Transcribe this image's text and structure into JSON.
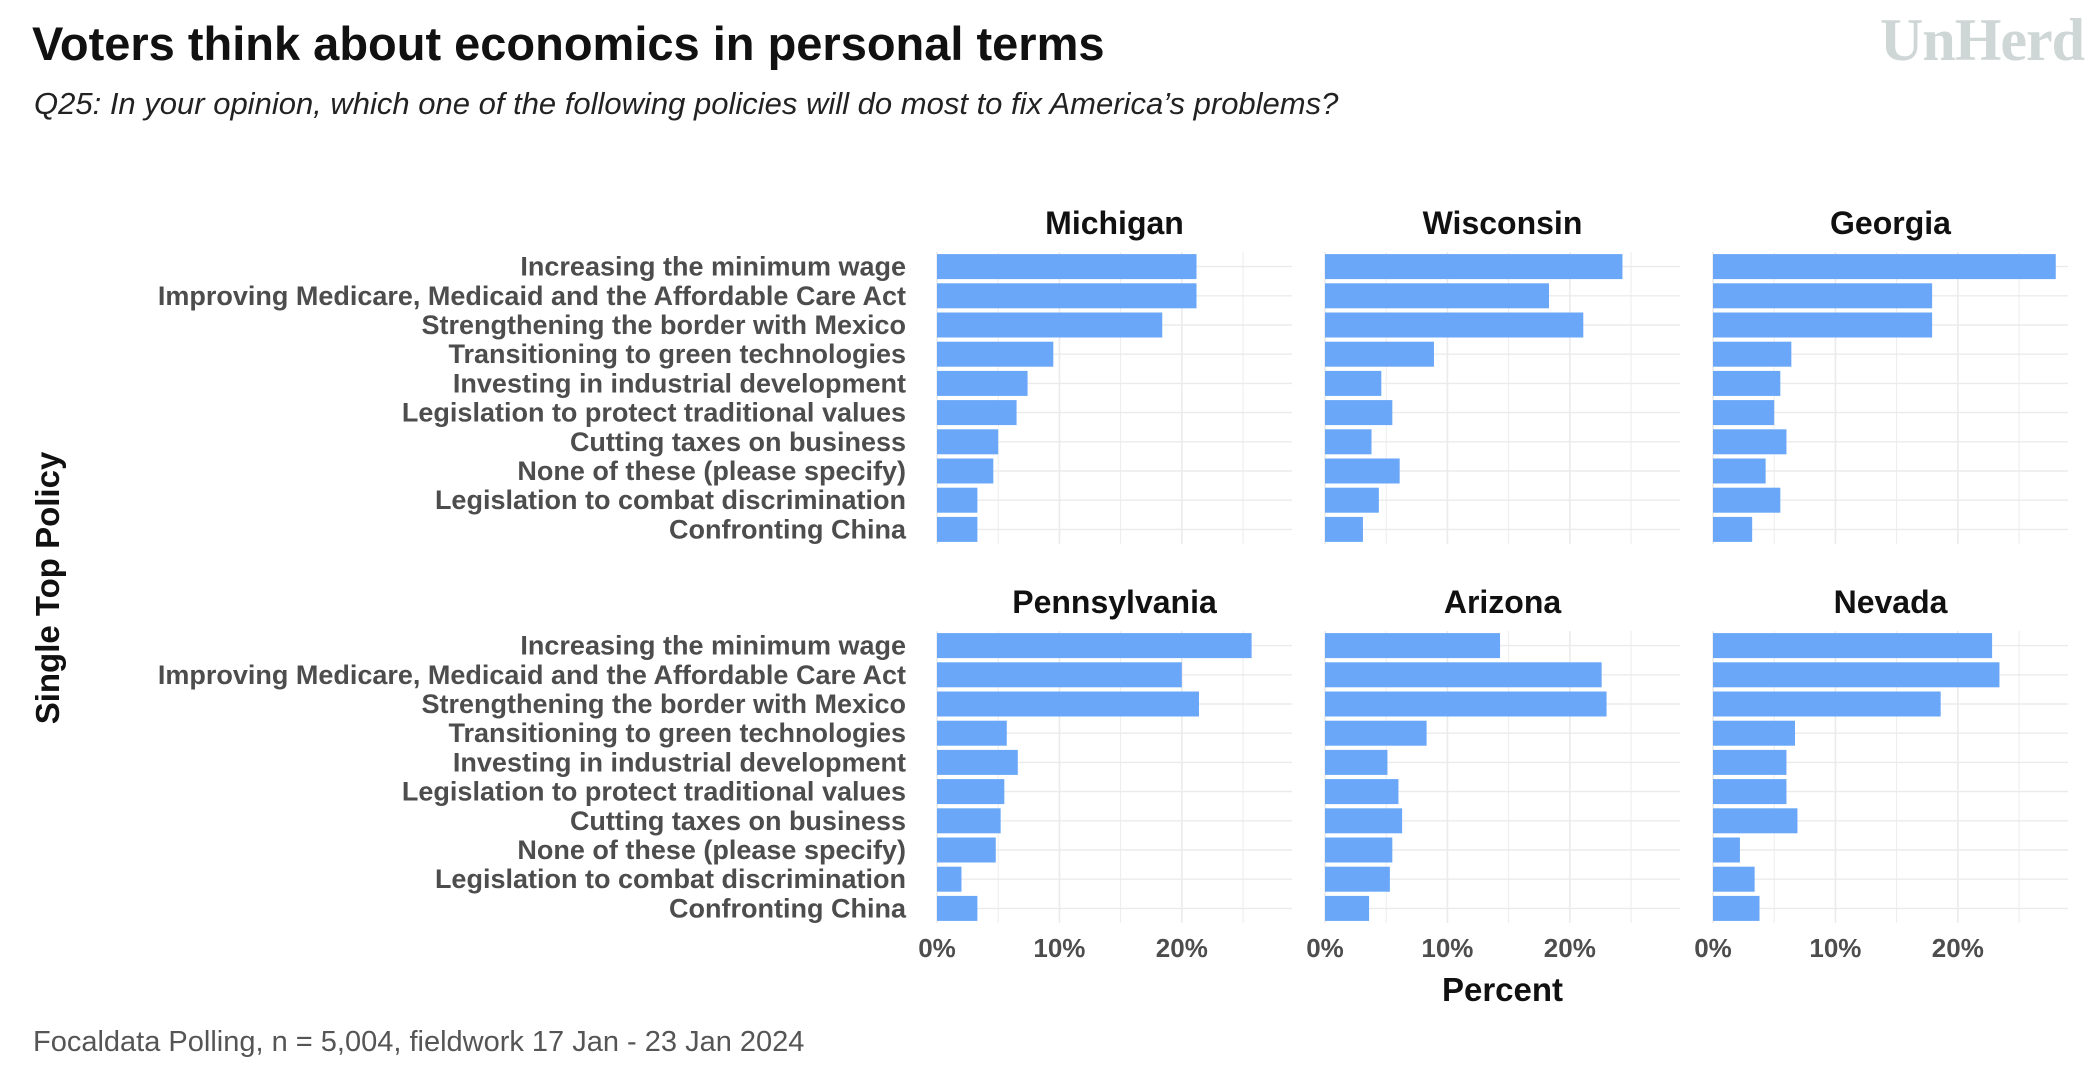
{
  "title": "Voters think about economics in personal terms",
  "subtitle": "Q25: In your opinion, which one of the following policies will do most to fix America’s problems?",
  "logo_text": "UnHerd",
  "caption": "Focaldata Polling, n = 5,004, fieldwork 17 Jan - 23 Jan 2024",
  "colors": {
    "bar": "#6aa7f8",
    "grid": "#ebebeb",
    "label": "#4d4d4d",
    "text": "#111111"
  },
  "chart_data": {
    "type": "bar",
    "orientation": "horizontal",
    "xlabel": "Percent",
    "ylabel": "Single Top Policy",
    "xlim": [
      0,
      29
    ],
    "xticks": [
      0,
      10,
      20
    ],
    "xtick_labels": [
      "0%",
      "10%",
      "20%"
    ],
    "categories": [
      "Increasing the minimum wage",
      "Improving Medicare, Medicaid and the Affordable Care Act",
      "Strengthening the border with Mexico",
      "Transitioning to green technologies",
      "Investing in industrial development",
      "Legislation to protect traditional values",
      "Cutting taxes on business",
      "None of these (please specify)",
      "Legislation to combat discrimination",
      "Confronting China"
    ],
    "facets": [
      {
        "name": "Michigan",
        "values": [
          21.2,
          21.2,
          18.4,
          9.5,
          7.4,
          6.5,
          5.0,
          4.6,
          3.3,
          3.3
        ]
      },
      {
        "name": "Wisconsin",
        "values": [
          24.3,
          18.3,
          21.1,
          8.9,
          4.6,
          5.5,
          3.8,
          6.1,
          4.4,
          3.1
        ]
      },
      {
        "name": "Georgia",
        "values": [
          28.0,
          17.9,
          17.9,
          6.4,
          5.5,
          5.0,
          6.0,
          4.3,
          5.5,
          3.2
        ]
      },
      {
        "name": "Pennsylvania",
        "values": [
          25.7,
          20.0,
          21.4,
          5.7,
          6.6,
          5.5,
          5.2,
          4.8,
          2.0,
          3.3
        ]
      },
      {
        "name": "Arizona",
        "values": [
          14.3,
          22.6,
          23.0,
          8.3,
          5.1,
          6.0,
          6.3,
          5.5,
          5.3,
          3.6
        ]
      },
      {
        "name": "Nevada",
        "values": [
          22.8,
          23.4,
          18.6,
          6.7,
          6.0,
          6.0,
          6.9,
          2.2,
          3.4,
          3.8
        ]
      }
    ]
  }
}
